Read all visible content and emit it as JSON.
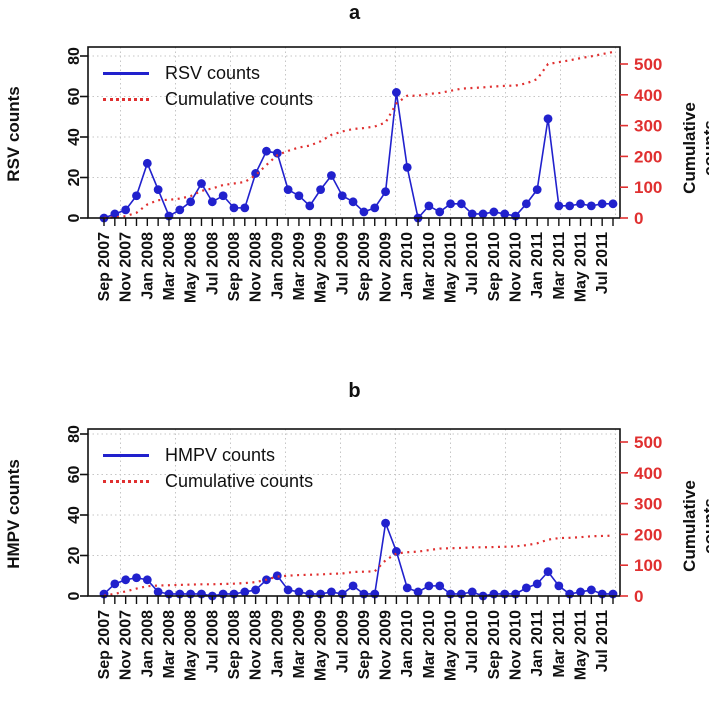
{
  "figure": {
    "panel_a_label": "a",
    "panel_b_label": "b",
    "background": "#ffffff",
    "line_color": "#2121cd",
    "cumulative_color": "#e03030"
  },
  "chart_data": [
    {
      "type": "line",
      "panel": "a",
      "title": "a",
      "ylabel_left": "RSV counts",
      "ylabel_right": "Cumulative counts",
      "y_left": {
        "min": 0,
        "max": 80,
        "ticks": [
          0,
          20,
          40,
          60,
          80
        ]
      },
      "y_right": {
        "min": 0,
        "max": 500,
        "ticks": [
          0,
          100,
          200,
          300,
          400,
          500
        ]
      },
      "x_label_every": 2,
      "grid": true,
      "legend_position": "top-left",
      "categories": [
        "Sep 2007",
        "Oct 2007",
        "Nov 2007",
        "Dec 2007",
        "Jan 2008",
        "Feb 2008",
        "Mar 2008",
        "Apr 2008",
        "May 2008",
        "Jun 2008",
        "Jul 2008",
        "Aug 2008",
        "Sep 2008",
        "Oct 2008",
        "Nov 2008",
        "Dec 2008",
        "Jan 2009",
        "Feb 2009",
        "Mar 2009",
        "Apr 2009",
        "May 2009",
        "Jun 2009",
        "Jul 2009",
        "Aug 2009",
        "Sep 2009",
        "Oct 2009",
        "Nov 2009",
        "Dec 2009",
        "Jan 2010",
        "Feb 2010",
        "Mar 2010",
        "Apr 2010",
        "May 2010",
        "Jun 2010",
        "Jul 2010",
        "Aug 2010",
        "Sep 2010",
        "Oct 2010",
        "Nov 2010",
        "Dec 2010",
        "Jan 2011",
        "Feb 2011",
        "Mar 2011",
        "Apr 2011",
        "May 2011",
        "Jun 2011",
        "Jul 2011",
        "Aug 2011"
      ],
      "series": [
        {
          "name": "RSV counts",
          "axis": "left",
          "style": "solid-points",
          "color": "#2121cd",
          "values": [
            0,
            2,
            4,
            11,
            27,
            14,
            1,
            4,
            8,
            17,
            8,
            11,
            5,
            5,
            22,
            33,
            32,
            14,
            11,
            6,
            14,
            21,
            11,
            8,
            3,
            5,
            13,
            62,
            25,
            0,
            6,
            3,
            7,
            7,
            2,
            2,
            3,
            2,
            1,
            7,
            14,
            49,
            6,
            6,
            7,
            6,
            7,
            7
          ]
        },
        {
          "name": "Cumulative counts",
          "axis": "right",
          "style": "dotted",
          "color": "#e03030",
          "values": [
            0,
            2,
            6,
            17,
            44,
            58,
            59,
            63,
            71,
            88,
            96,
            107,
            112,
            117,
            139,
            172,
            204,
            218,
            229,
            235,
            249,
            270,
            281,
            289,
            292,
            297,
            310,
            372,
            397,
            397,
            403,
            406,
            413,
            420,
            422,
            424,
            427,
            429,
            430,
            437,
            451,
            500,
            506,
            512,
            519,
            525,
            532,
            539
          ]
        }
      ]
    },
    {
      "type": "line",
      "panel": "b",
      "title": "b",
      "ylabel_left": "HMPV counts",
      "ylabel_right": "Cumulative counts",
      "y_left": {
        "min": 0,
        "max": 80,
        "ticks": [
          0,
          20,
          40,
          60,
          80
        ]
      },
      "y_right": {
        "min": 0,
        "max": 500,
        "ticks": [
          0,
          100,
          200,
          300,
          400,
          500
        ]
      },
      "x_label_every": 2,
      "grid": true,
      "legend_position": "top-left",
      "categories": [
        "Sep 2007",
        "Oct 2007",
        "Nov 2007",
        "Dec 2007",
        "Jan 2008",
        "Feb 2008",
        "Mar 2008",
        "Apr 2008",
        "May 2008",
        "Jun 2008",
        "Jul 2008",
        "Aug 2008",
        "Sep 2008",
        "Oct 2008",
        "Nov 2008",
        "Dec 2008",
        "Jan 2009",
        "Feb 2009",
        "Mar 2009",
        "Apr 2009",
        "May 2009",
        "Jun 2009",
        "Jul 2009",
        "Aug 2009",
        "Sep 2009",
        "Oct 2009",
        "Nov 2009",
        "Dec 2009",
        "Jan 2010",
        "Feb 2010",
        "Mar 2010",
        "Apr 2010",
        "May 2010",
        "Jun 2010",
        "Jul 2010",
        "Aug 2010",
        "Sep 2010",
        "Oct 2010",
        "Nov 2010",
        "Dec 2010",
        "Jan 2011",
        "Feb 2011",
        "Mar 2011",
        "Apr 2011",
        "May 2011",
        "Jun 2011",
        "Jul 2011",
        "Aug 2011"
      ],
      "series": [
        {
          "name": "HMPV counts",
          "axis": "left",
          "style": "solid-points",
          "color": "#2121cd",
          "values": [
            1,
            6,
            8,
            9,
            8,
            2,
            1,
            1,
            1,
            1,
            0,
            1,
            1,
            2,
            3,
            8,
            10,
            3,
            2,
            1,
            1,
            2,
            1,
            5,
            1,
            1,
            36,
            22,
            4,
            2,
            5,
            5,
            1,
            1,
            2,
            0,
            1,
            1,
            1,
            4,
            6,
            12,
            5,
            1,
            2,
            3,
            1,
            1
          ]
        },
        {
          "name": "Cumulative counts",
          "axis": "right",
          "style": "dotted",
          "color": "#e03030",
          "values": [
            1,
            7,
            15,
            24,
            32,
            34,
            35,
            36,
            37,
            38,
            38,
            39,
            40,
            42,
            45,
            53,
            63,
            66,
            68,
            69,
            70,
            72,
            73,
            78,
            79,
            80,
            116,
            138,
            142,
            144,
            149,
            154,
            155,
            156,
            158,
            158,
            159,
            160,
            161,
            165,
            171,
            183,
            188,
            189,
            191,
            194,
            195,
            196
          ]
        }
      ]
    }
  ]
}
